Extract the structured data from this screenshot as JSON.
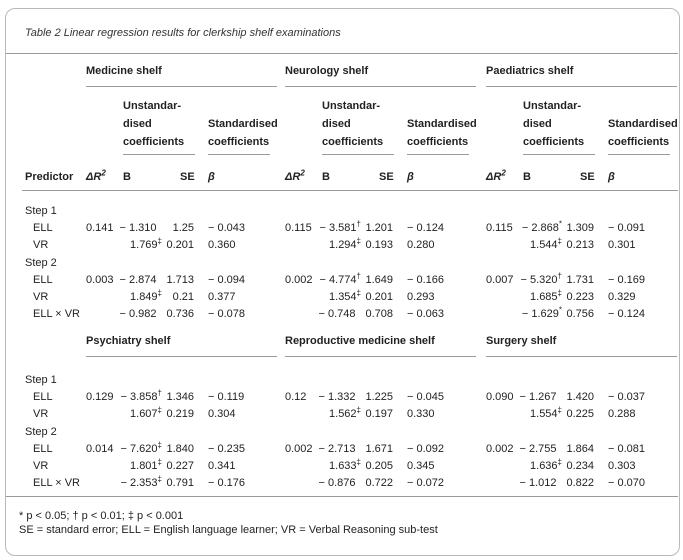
{
  "caption": "Table 2  Linear regression results for clerkship shelf examinations",
  "col_labels": {
    "predictor": "Predictor",
    "dr2": "ΔR",
    "dr2_sup": "2",
    "b": "B",
    "se": "SE",
    "beta": "β",
    "unstd": "Unstandar-\ndised\ncoefficients",
    "std": "Standardised\ncoefficients"
  },
  "top_shelves": [
    "Medicine shelf",
    "Neurology shelf",
    "Paediatrics shelf"
  ],
  "bottom_shelves": [
    "Psychiatry shelf",
    "Reproductive medicine shelf",
    "Surgery shelf"
  ],
  "row_labels": [
    "Step 1",
    "ELL",
    "VR",
    "Step 2",
    "ELL",
    "VR",
    "ELL × VR"
  ],
  "top_data": [
    [
      [
        "",
        "",
        "",
        "",
        ""
      ],
      [
        "",
        "",
        "",
        "",
        ""
      ],
      [
        "",
        "",
        "",
        "",
        ""
      ]
    ],
    [
      [
        "0.141",
        "− 1.310",
        "",
        "1.25",
        "− 0.043"
      ],
      [
        "0.115",
        "− 3.581",
        "†",
        "1.201",
        "− 0.124"
      ],
      [
        "0.115",
        "− 2.868",
        "*",
        "1.309",
        "− 0.091"
      ]
    ],
    [
      [
        "",
        "1.769",
        "‡",
        "0.201",
        "0.360"
      ],
      [
        "",
        "1.294",
        "‡",
        "0.193",
        "0.280"
      ],
      [
        "",
        "1.544",
        "‡",
        "0.213",
        "0.301"
      ]
    ],
    [
      [
        "",
        "",
        "",
        "",
        ""
      ],
      [
        "",
        "",
        "",
        "",
        ""
      ],
      [
        "",
        "",
        "",
        "",
        ""
      ]
    ],
    [
      [
        "0.003",
        "− 2.874",
        "",
        "1.713",
        "− 0.094"
      ],
      [
        "0.002",
        "− 4.774",
        "†",
        "1.649",
        "− 0.166"
      ],
      [
        "0.007",
        "− 5.320",
        "†",
        "1.731",
        "− 0.169"
      ]
    ],
    [
      [
        "",
        "1.849",
        "‡",
        "0.21",
        "0.377"
      ],
      [
        "",
        "1.354",
        "‡",
        "0.201",
        "0.293"
      ],
      [
        "",
        "1.685",
        "‡",
        "0.223",
        "0.329"
      ]
    ],
    [
      [
        "",
        "− 0.982",
        "",
        "0.736",
        "− 0.078"
      ],
      [
        "",
        "− 0.748",
        "",
        "0.708",
        "− 0.063"
      ],
      [
        "",
        "− 1.629",
        "*",
        "0.756",
        "− 0.124"
      ]
    ]
  ],
  "bottom_data": [
    [
      [
        "",
        "",
        "",
        "",
        ""
      ],
      [
        "",
        "",
        "",
        "",
        ""
      ],
      [
        "",
        "",
        "",
        "",
        ""
      ]
    ],
    [
      [
        "0.129",
        "− 3.858",
        "†",
        "1.346",
        "− 0.119"
      ],
      [
        "0.12",
        "− 1.332",
        "",
        "1.225",
        "− 0.045"
      ],
      [
        "0.090",
        "− 1.267",
        "",
        "1.420",
        "− 0.037"
      ]
    ],
    [
      [
        "",
        "1.607",
        "‡",
        "0.219",
        "0.304"
      ],
      [
        "",
        "1.562",
        "‡",
        "0.197",
        "0.330"
      ],
      [
        "",
        "1.554",
        "‡",
        "0.225",
        "0.288"
      ]
    ],
    [
      [
        "",
        "",
        "",
        "",
        ""
      ],
      [
        "",
        "",
        "",
        "",
        ""
      ],
      [
        "",
        "",
        "",
        "",
        ""
      ]
    ],
    [
      [
        "0.014",
        "− 7.620",
        "‡",
        "1.840",
        "− 0.235"
      ],
      [
        "0.002",
        "− 2.713",
        "",
        "1.671",
        "− 0.092"
      ],
      [
        "0.002",
        "− 2.755",
        "",
        "1.864",
        "− 0.081"
      ]
    ],
    [
      [
        "",
        "1.801",
        "‡",
        "0.227",
        "0.341"
      ],
      [
        "",
        "1.633",
        "‡",
        "0.205",
        "0.345"
      ],
      [
        "",
        "1.636",
        "‡",
        "0.234",
        "0.303"
      ]
    ],
    [
      [
        "",
        "− 2.353",
        "‡",
        "0.791",
        "− 0.176"
      ],
      [
        "",
        "− 0.876",
        "",
        "0.722",
        "− 0.072"
      ],
      [
        "",
        "− 1.012",
        "",
        "0.822",
        "− 0.070"
      ]
    ]
  ],
  "footnote_line1": "* p < 0.05; † p < 0.01; ‡ p < 0.001",
  "footnote_line2": "SE = standard error; ELL = English language learner; VR = Verbal Reasoning sub-test"
}
